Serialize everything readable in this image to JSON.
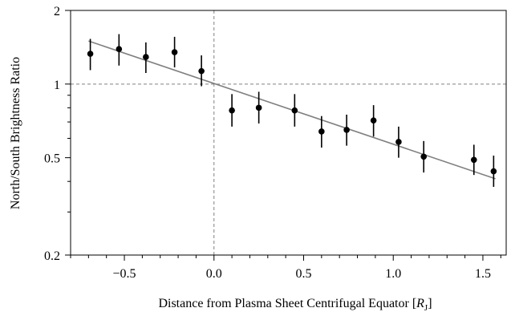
{
  "chart_data": {
    "type": "scatter",
    "xlabel": "Distance from Plasma Sheet Centrifugal Equator [",
    "xlabel_unit_main": "R",
    "xlabel_unit_sub": "J",
    "xlabel_close": "]",
    "ylabel": "North/South Brightness Ratio",
    "xlim": [
      -0.8,
      1.63
    ],
    "ylim": [
      0.2,
      2
    ],
    "yscale": "log",
    "x_ticks": [
      -0.5,
      0.0,
      0.5,
      1.0,
      1.5
    ],
    "x_tick_labels": [
      "−0.5",
      "0.0",
      "0.5",
      "1.0",
      "1.5"
    ],
    "y_ticks": [
      0.2,
      0.5,
      1,
      2
    ],
    "y_tick_labels": [
      "0.2",
      "0.5",
      "1",
      "2"
    ],
    "reference_lines": {
      "x": 0,
      "y": 1
    },
    "points": [
      {
        "x": -0.69,
        "y": 1.33,
        "y_low": 1.14,
        "y_high": 1.53
      },
      {
        "x": -0.53,
        "y": 1.39,
        "y_low": 1.19,
        "y_high": 1.6
      },
      {
        "x": -0.38,
        "y": 1.29,
        "y_low": 1.11,
        "y_high": 1.48
      },
      {
        "x": -0.22,
        "y": 1.35,
        "y_low": 1.17,
        "y_high": 1.56
      },
      {
        "x": -0.07,
        "y": 1.13,
        "y_low": 0.98,
        "y_high": 1.31
      },
      {
        "x": 0.1,
        "y": 0.78,
        "y_low": 0.67,
        "y_high": 0.91
      },
      {
        "x": 0.25,
        "y": 0.8,
        "y_low": 0.69,
        "y_high": 0.93
      },
      {
        "x": 0.45,
        "y": 0.78,
        "y_low": 0.67,
        "y_high": 0.91
      },
      {
        "x": 0.6,
        "y": 0.64,
        "y_low": 0.55,
        "y_high": 0.74
      },
      {
        "x": 0.74,
        "y": 0.65,
        "y_low": 0.56,
        "y_high": 0.75
      },
      {
        "x": 0.89,
        "y": 0.71,
        "y_low": 0.61,
        "y_high": 0.82
      },
      {
        "x": 1.03,
        "y": 0.58,
        "y_low": 0.5,
        "y_high": 0.67
      },
      {
        "x": 1.17,
        "y": 0.505,
        "y_low": 0.435,
        "y_high": 0.585
      },
      {
        "x": 1.45,
        "y": 0.49,
        "y_low": 0.425,
        "y_high": 0.565
      },
      {
        "x": 1.56,
        "y": 0.44,
        "y_low": 0.38,
        "y_high": 0.51
      }
    ],
    "fit_line": {
      "x": [
        -0.7,
        1.57
      ],
      "y": [
        1.5,
        0.41
      ]
    },
    "colors": {
      "points": "#000000",
      "fit": "#808080",
      "reference": "#808080"
    },
    "grid": false
  }
}
